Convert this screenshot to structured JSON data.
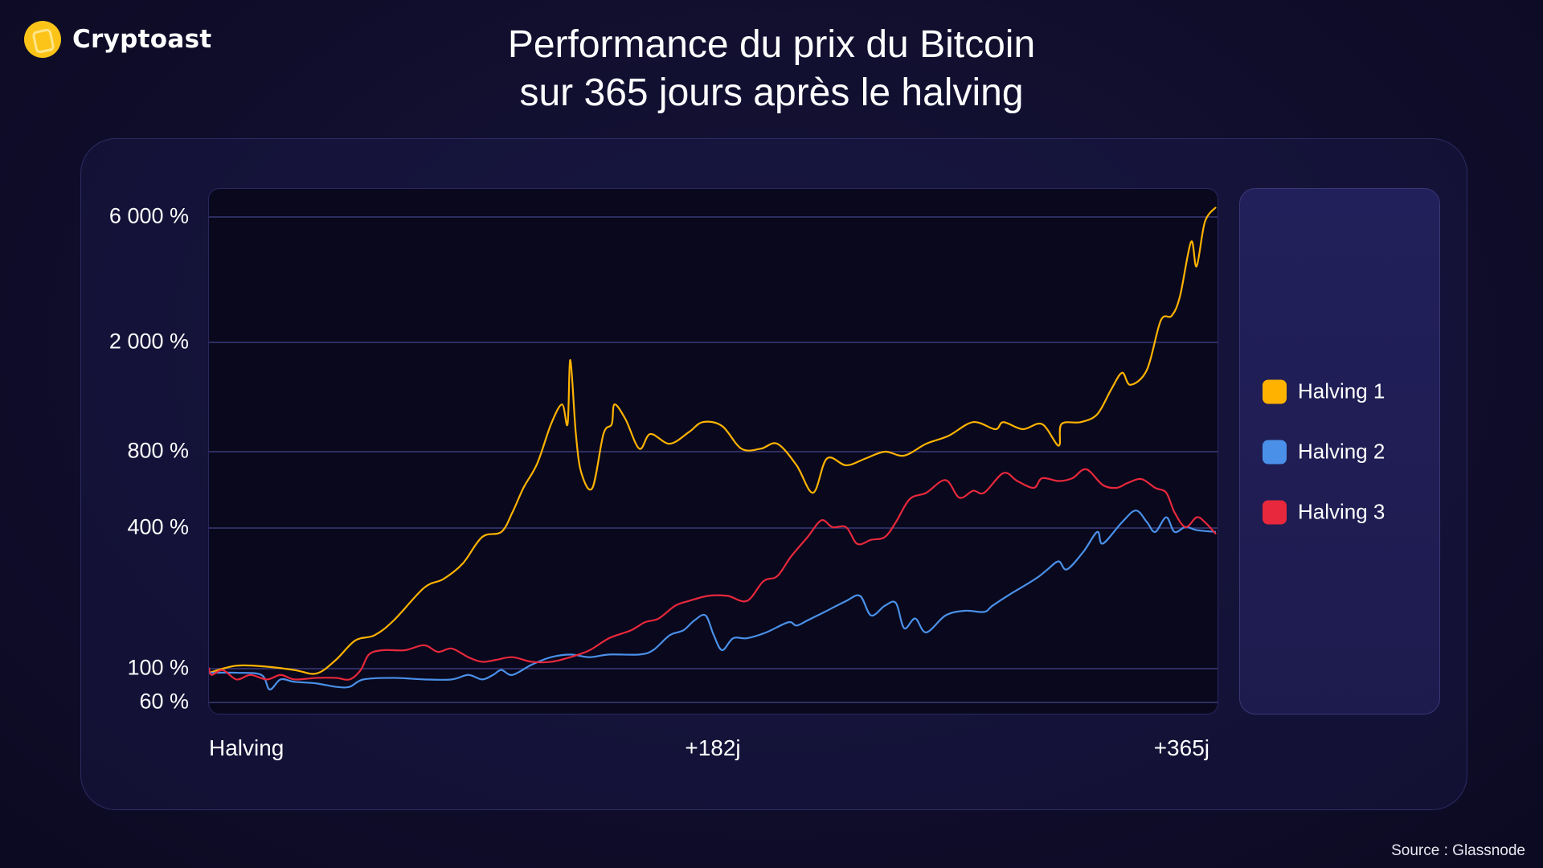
{
  "brand": {
    "name": "Cryptoast",
    "logo_color": "#fcc419"
  },
  "title": {
    "line1": "Performance du prix du Bitcoin",
    "line2": "sur 365 jours après le halving"
  },
  "source": "Source : Glassnode",
  "chart_data": {
    "type": "line",
    "title": "Performance du prix du Bitcoin sur 365 jours après le halving",
    "xlabel": "",
    "ylabel": "",
    "xlim": [
      0,
      365
    ],
    "x_ticks": [
      {
        "value": 0,
        "label": "Halving"
      },
      {
        "value": 182,
        "label": "+182j"
      },
      {
        "value": 365,
        "label": "+365j"
      }
    ],
    "y_ticks": [
      {
        "value": 6000,
        "label": "6 000 %"
      },
      {
        "value": 2000,
        "label": "2 000 %"
      },
      {
        "value": 800,
        "label": "800 %"
      },
      {
        "value": 400,
        "label": "400 %"
      },
      {
        "value": 100,
        "label": "100 %"
      },
      {
        "value": 60,
        "label": "60 %"
      }
    ],
    "y_scale": "non-linear (ticks unevenly spaced)",
    "grid": "horizontal",
    "legend_position": "right",
    "series": [
      {
        "name": "Halving 1",
        "color": "#ffb300",
        "points": [
          [
            0,
            94
          ],
          [
            10,
            103
          ],
          [
            21,
            102
          ],
          [
            31,
            98
          ],
          [
            39,
            93
          ],
          [
            46,
            109
          ],
          [
            53,
            132
          ],
          [
            60,
            139
          ],
          [
            67,
            161
          ],
          [
            78,
            222
          ],
          [
            85,
            242
          ],
          [
            92,
            282
          ],
          [
            99,
            366
          ],
          [
            106,
            385
          ],
          [
            110,
            461
          ],
          [
            114,
            576
          ],
          [
            119,
            719
          ],
          [
            124,
            1008
          ],
          [
            128,
            1189
          ],
          [
            130,
            1008
          ],
          [
            131,
            1725
          ],
          [
            133,
            928
          ],
          [
            135,
            659
          ],
          [
            139,
            576
          ],
          [
            143,
            928
          ],
          [
            146,
            1008
          ],
          [
            147,
            1189
          ],
          [
            151,
            1050
          ],
          [
            156,
            820
          ],
          [
            160,
            928
          ],
          [
            167,
            855
          ],
          [
            174,
            943
          ],
          [
            179,
            1025
          ],
          [
            186,
            992
          ],
          [
            193,
            820
          ],
          [
            200,
            820
          ],
          [
            206,
            855
          ],
          [
            213,
            707
          ],
          [
            219,
            551
          ],
          [
            224,
            752
          ],
          [
            231,
            707
          ],
          [
            238,
            752
          ],
          [
            245,
            800
          ],
          [
            252,
            772
          ],
          [
            260,
            855
          ],
          [
            268,
            913
          ],
          [
            277,
            1025
          ],
          [
            285,
            966
          ],
          [
            288,
            1025
          ],
          [
            295,
            966
          ],
          [
            302,
            1008
          ],
          [
            308,
            841
          ],
          [
            309,
            1008
          ],
          [
            316,
            1025
          ],
          [
            322,
            1095
          ],
          [
            327,
            1346
          ],
          [
            331,
            1550
          ],
          [
            334,
            1401
          ],
          [
            340,
            1589
          ],
          [
            345,
            2420
          ],
          [
            349,
            2527
          ],
          [
            352,
            3004
          ],
          [
            356,
            4830
          ],
          [
            358,
            3896
          ],
          [
            361,
            5743
          ],
          [
            365,
            6540
          ]
        ]
      },
      {
        "name": "Halving 2",
        "color": "#4a90e8",
        "points": [
          [
            0,
            94
          ],
          [
            10,
            94
          ],
          [
            19,
            91
          ],
          [
            22,
            73
          ],
          [
            26,
            85
          ],
          [
            31,
            82
          ],
          [
            39,
            80
          ],
          [
            46,
            76
          ],
          [
            51,
            76
          ],
          [
            56,
            85
          ],
          [
            67,
            87
          ],
          [
            78,
            85
          ],
          [
            88,
            85
          ],
          [
            94,
            91
          ],
          [
            99,
            85
          ],
          [
            103,
            91
          ],
          [
            106,
            98
          ],
          [
            110,
            91
          ],
          [
            117,
            104
          ],
          [
            124,
            112
          ],
          [
            131,
            115
          ],
          [
            138,
            112
          ],
          [
            145,
            115
          ],
          [
            156,
            115
          ],
          [
            161,
            120
          ],
          [
            167,
            139
          ],
          [
            172,
            146
          ],
          [
            176,
            161
          ],
          [
            180,
            169
          ],
          [
            183,
            139
          ],
          [
            186,
            120
          ],
          [
            190,
            135
          ],
          [
            195,
            135
          ],
          [
            202,
            143
          ],
          [
            210,
            158
          ],
          [
            213,
            153
          ],
          [
            217,
            161
          ],
          [
            224,
            177
          ],
          [
            231,
            195
          ],
          [
            236,
            205
          ],
          [
            240,
            169
          ],
          [
            245,
            186
          ],
          [
            249,
            191
          ],
          [
            252,
            149
          ],
          [
            256,
            164
          ],
          [
            260,
            143
          ],
          [
            267,
            169
          ],
          [
            274,
            177
          ],
          [
            281,
            175
          ],
          [
            284,
            186
          ],
          [
            290,
            207
          ],
          [
            297,
            232
          ],
          [
            301,
            249
          ],
          [
            304,
            266
          ],
          [
            308,
            288
          ],
          [
            311,
            266
          ],
          [
            317,
            317
          ],
          [
            322,
            385
          ],
          [
            324,
            343
          ],
          [
            331,
            422
          ],
          [
            336,
            469
          ],
          [
            340,
            422
          ],
          [
            343,
            385
          ],
          [
            347,
            441
          ],
          [
            350,
            385
          ],
          [
            354,
            404
          ],
          [
            358,
            392
          ],
          [
            365,
            385
          ]
        ]
      },
      {
        "name": "Halving 3",
        "color": "#e8283c",
        "points": [
          [
            0,
            101
          ],
          [
            1,
            91
          ],
          [
            5,
            98
          ],
          [
            10,
            85
          ],
          [
            15,
            91
          ],
          [
            21,
            85
          ],
          [
            26,
            91
          ],
          [
            31,
            85
          ],
          [
            39,
            87
          ],
          [
            46,
            87
          ],
          [
            51,
            85
          ],
          [
            55,
            98
          ],
          [
            58,
            115
          ],
          [
            63,
            120
          ],
          [
            71,
            120
          ],
          [
            78,
            126
          ],
          [
            83,
            118
          ],
          [
            88,
            122
          ],
          [
            94,
            112
          ],
          [
            99,
            107
          ],
          [
            104,
            109
          ],
          [
            110,
            112
          ],
          [
            117,
            107
          ],
          [
            124,
            107
          ],
          [
            131,
            112
          ],
          [
            138,
            120
          ],
          [
            145,
            135
          ],
          [
            153,
            146
          ],
          [
            158,
            158
          ],
          [
            163,
            164
          ],
          [
            169,
            186
          ],
          [
            174,
            195
          ],
          [
            181,
            205
          ],
          [
            188,
            205
          ],
          [
            195,
            195
          ],
          [
            201,
            237
          ],
          [
            206,
            249
          ],
          [
            211,
            302
          ],
          [
            217,
            366
          ],
          [
            222,
            429
          ],
          [
            226,
            403
          ],
          [
            231,
            403
          ],
          [
            235,
            342
          ],
          [
            240,
            356
          ],
          [
            245,
            366
          ],
          [
            249,
            422
          ],
          [
            254,
            520
          ],
          [
            260,
            551
          ],
          [
            267,
            618
          ],
          [
            272,
            527
          ],
          [
            277,
            561
          ],
          [
            281,
            551
          ],
          [
            288,
            659
          ],
          [
            293,
            613
          ],
          [
            299,
            576
          ],
          [
            302,
            629
          ],
          [
            308,
            613
          ],
          [
            313,
            629
          ],
          [
            318,
            682
          ],
          [
            324,
            591
          ],
          [
            329,
            576
          ],
          [
            333,
            602
          ],
          [
            338,
            624
          ],
          [
            343,
            576
          ],
          [
            347,
            551
          ],
          [
            350,
            461
          ],
          [
            354,
            403
          ],
          [
            358,
            441
          ],
          [
            361,
            422
          ],
          [
            365,
            377
          ]
        ]
      }
    ]
  }
}
